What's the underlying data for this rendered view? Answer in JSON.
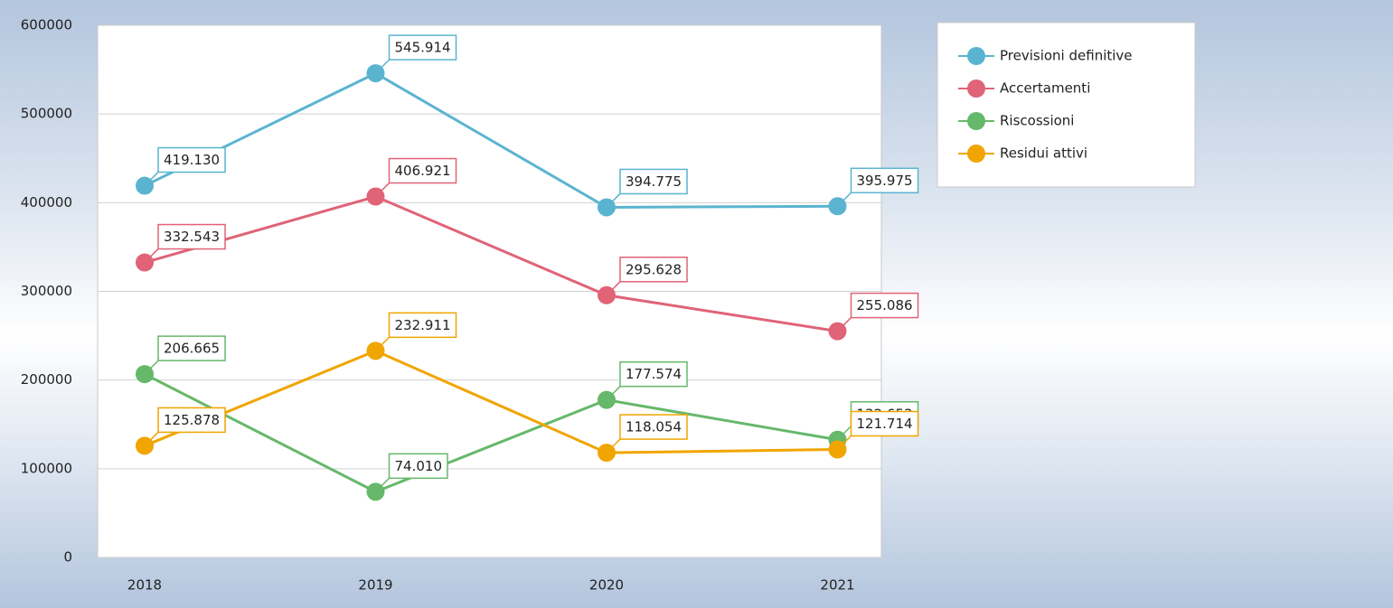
{
  "chart_data": {
    "type": "line",
    "categories": [
      "2018",
      "2019",
      "2020",
      "2021"
    ],
    "series": [
      {
        "name": "Previsioni definitive",
        "color": "#5ab4d0",
        "values": [
          419130,
          545914,
          394775,
          395975
        ],
        "value_labels": [
          "419.130",
          "545.914",
          "394.775",
          "395.975"
        ]
      },
      {
        "name": "Accertamenti",
        "color": "#e06377",
        "values": [
          332543,
          406921,
          295628,
          255086
        ],
        "value_labels": [
          "332.543",
          "406.921",
          "295.628",
          "255.086"
        ]
      },
      {
        "name": "Riscossioni",
        "color": "#66b86a",
        "values": [
          206665,
          74010,
          177574,
          132653
        ],
        "value_labels": [
          "206.665",
          "74.010",
          "177.574",
          "132.653"
        ]
      },
      {
        "name": "Residui attivi",
        "color": "#f0a500",
        "values": [
          125878,
          232911,
          118054,
          121714
        ],
        "value_labels": [
          "125.878",
          "232.911",
          "118.054",
          "121.714"
        ]
      }
    ],
    "ylim": [
      0,
      600000
    ],
    "yticks": [
      0,
      100000,
      200000,
      300000,
      400000,
      500000,
      600000
    ],
    "grid": true,
    "legend": "right"
  }
}
